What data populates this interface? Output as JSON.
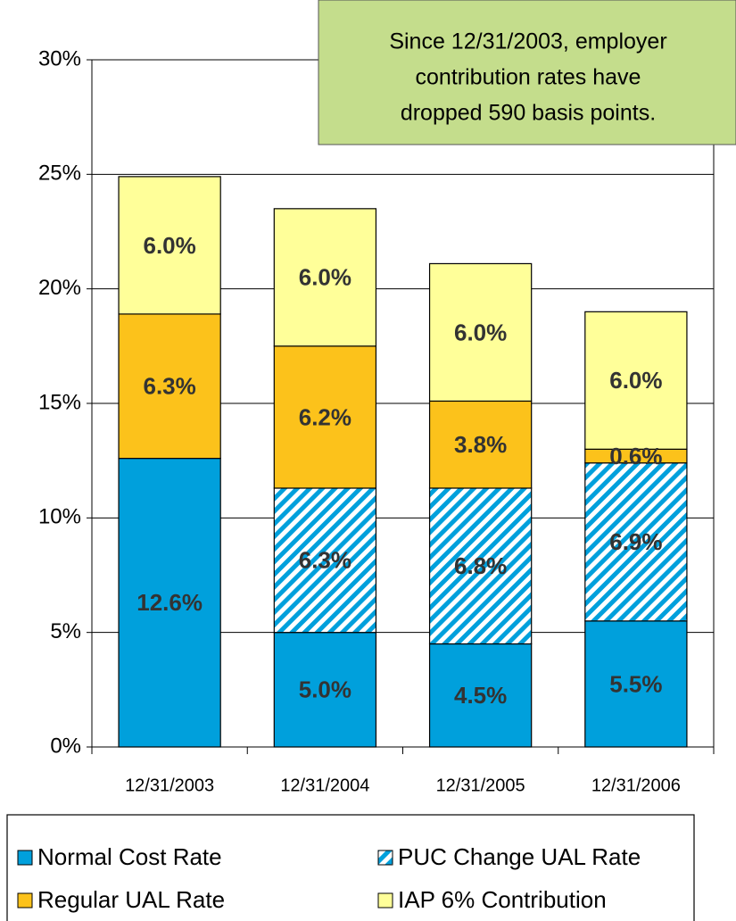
{
  "chart_data": {
    "type": "stacked_bar",
    "annotation": [
      "Since 12/31/2003, employer",
      "contribution rates have",
      "dropped 590 basis points."
    ],
    "categories": [
      "12/31/2003",
      "12/31/2004",
      "12/31/2005",
      "12/31/2006"
    ],
    "series": [
      {
        "name": "Normal Cost Rate",
        "color": "#00a0dc",
        "values": [
          12.6,
          5.0,
          4.5,
          5.5
        ],
        "value_labels": [
          "12.6%",
          "5.0%",
          "4.5%",
          "5.5%"
        ]
      },
      {
        "name": "PUC Change UAL Rate",
        "color": "#00a0dc",
        "pattern": "hatch",
        "values": [
          null,
          6.3,
          6.8,
          6.9
        ],
        "value_labels": [
          null,
          "6.3%",
          "6.8%",
          "6.9%"
        ]
      },
      {
        "name": "Regular UAL Rate",
        "color": "#fcc21b",
        "values": [
          6.3,
          6.2,
          3.8,
          0.6
        ],
        "value_labels": [
          "6.3%",
          "6.2%",
          "3.8%",
          "0.6%"
        ]
      },
      {
        "name": "IAP 6% Contribution",
        "color": "#ffff99",
        "values": [
          6.0,
          6.0,
          6.0,
          6.0
        ],
        "value_labels": [
          "6.0%",
          "6.0%",
          "6.0%",
          "6.0%"
        ]
      }
    ],
    "ylim": [
      0,
      30
    ],
    "yticks": [
      {
        "value": 0,
        "label": "0%"
      },
      {
        "value": 5,
        "label": "5%"
      },
      {
        "value": 10,
        "label": "10%"
      },
      {
        "value": 15,
        "label": "15%"
      },
      {
        "value": 20,
        "label": "20%"
      },
      {
        "value": 25,
        "label": "25%"
      },
      {
        "value": 30,
        "label": "30%"
      }
    ],
    "grid": true
  }
}
